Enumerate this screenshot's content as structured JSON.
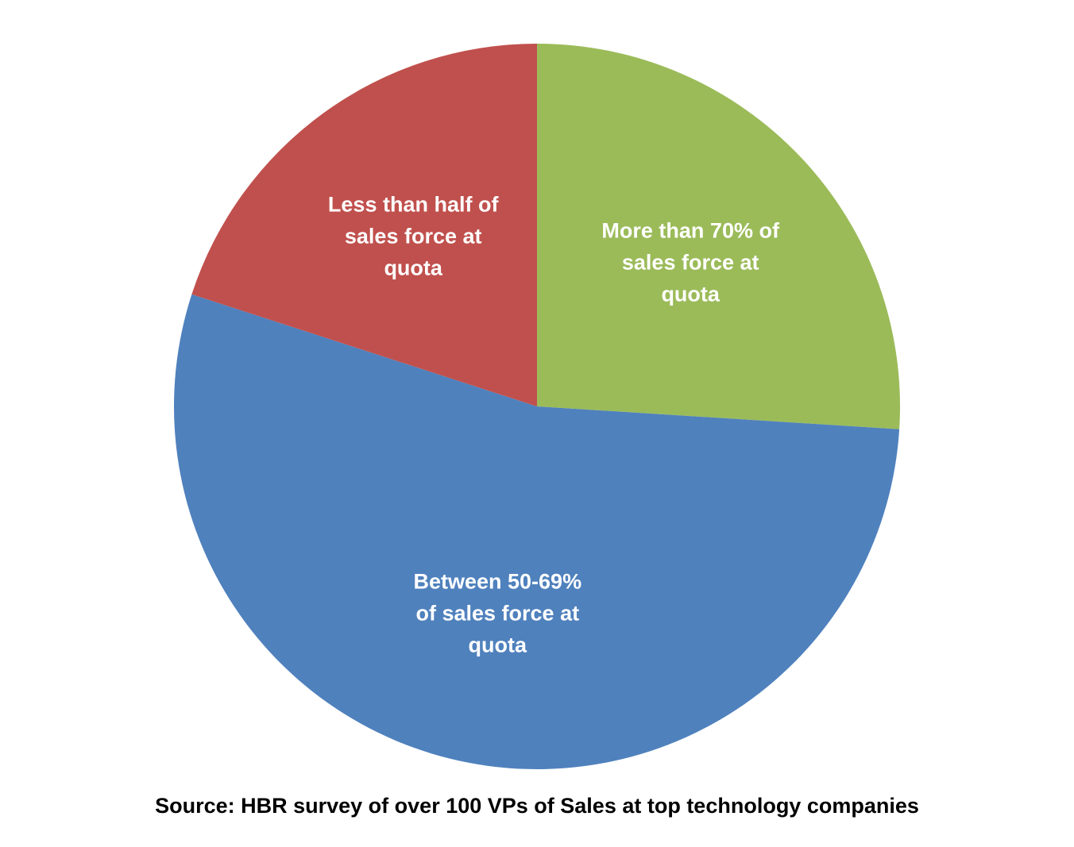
{
  "chart_data": {
    "type": "pie",
    "title": "",
    "start_angle_deg": 0,
    "direction": "clockwise",
    "slices": [
      {
        "label": "More than 70% of sales force at quota",
        "label_lines": [
          "More than 70% of",
          "sales force at",
          "quota"
        ],
        "value": 26,
        "color": "#9BBB59"
      },
      {
        "label": "Between 50-69% of sales force at quota",
        "label_lines": [
          "Between 50-69%",
          "of sales force at",
          "quota"
        ],
        "value": 54,
        "color": "#4F81BD"
      },
      {
        "label": "Less than half of sales force at quota",
        "label_lines": [
          "Less than half of",
          "sales force at",
          "quota"
        ],
        "value": 20,
        "color": "#C0504D"
      }
    ],
    "legend": "none",
    "data_labels": "inside"
  },
  "caption": {
    "text": "Source: HBR survey of over 100 VPs of Sales at top technology companies"
  }
}
